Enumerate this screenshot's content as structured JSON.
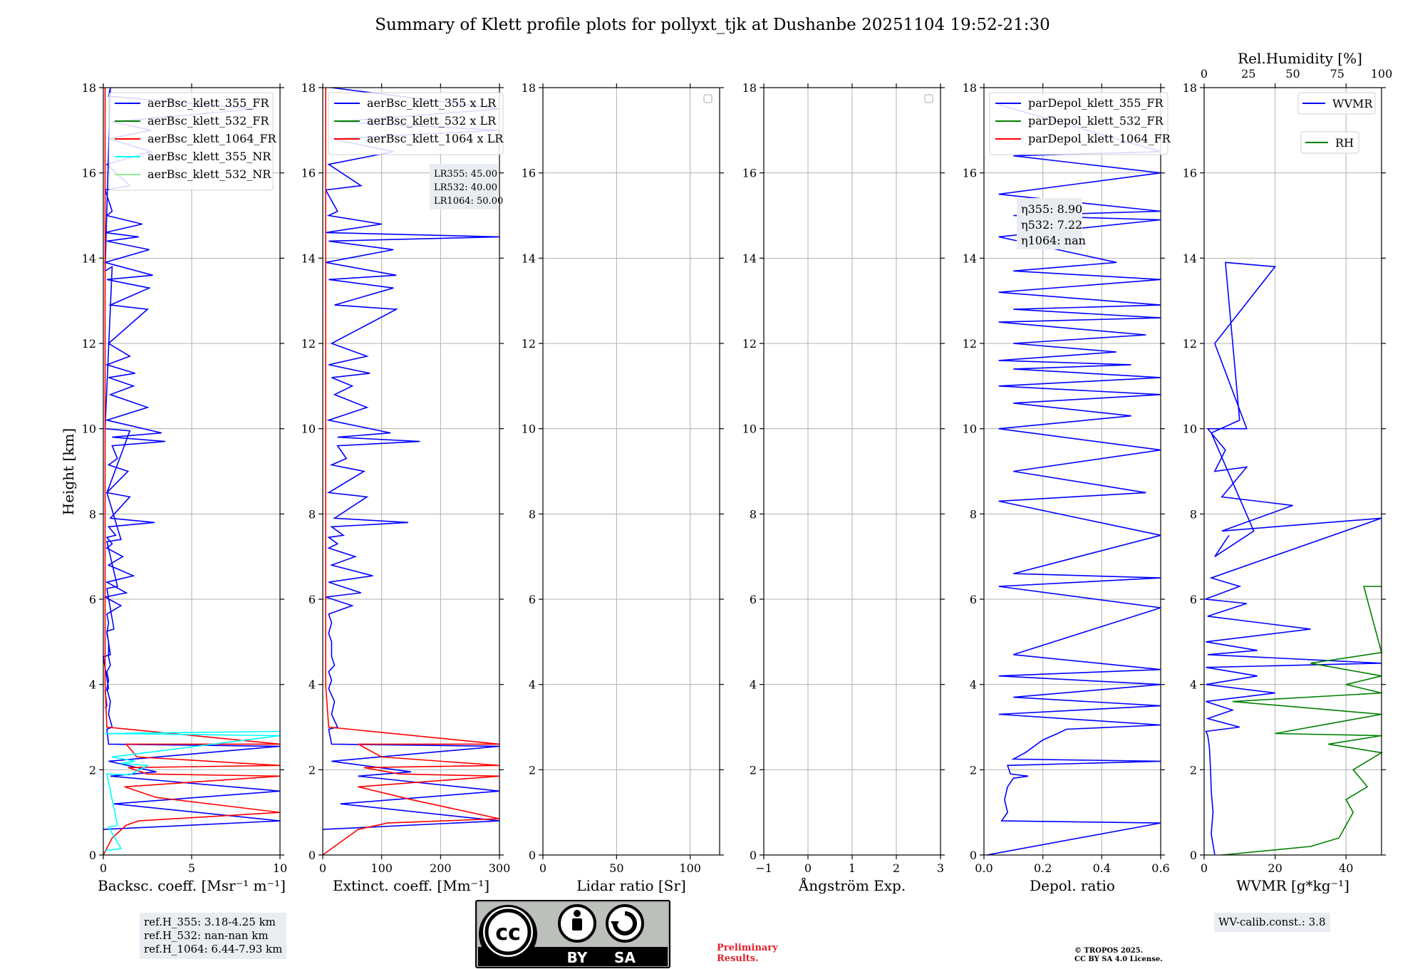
{
  "title": "Summary of Klett profile plots for pollyxt_tjk at Dushanbe 20251104 19:52-21:30",
  "ylabel": "Height [km]",
  "y_ticks": [
    "0",
    "2",
    "4",
    "6",
    "8",
    "10",
    "12",
    "14",
    "16",
    "18"
  ],
  "ref_box": [
    "ref.H_355: 3.18-4.25 km",
    "ref.H_532: nan-nan km",
    "ref.H_1064: 6.44-7.93 km"
  ],
  "wv_box": "WV-calib.const.: 3.8",
  "preliminary": [
    "Preliminary",
    "Results."
  ],
  "copyright": [
    "© TROPOS 2025.",
    "CC BY SA 4.0 License."
  ],
  "license_badge": {
    "by": "BY",
    "sa": "SA"
  },
  "colors": {
    "blue": "#0000ff",
    "green": "#008000",
    "red": "#ff0000",
    "cyan": "#00ffff",
    "lightgreen": "#90ee90",
    "grid": "#b0b0b0",
    "info_bg": "#e9ecf1"
  },
  "chart_data": [
    {
      "id": "backscatter",
      "type": "line",
      "xlabel": "Backsc. coeff. [Msr⁻¹ m⁻¹]",
      "xlim": [
        0,
        10
      ],
      "ylim": [
        0,
        18
      ],
      "x_ticks": [
        "0",
        "5",
        "10"
      ],
      "legend": [
        "aerBsc_klett_355_FR",
        "aerBsc_klett_532_FR",
        "aerBsc_klett_1064_FR",
        "aerBsc_klett_355_NR",
        "aerBsc_klett_532_NR"
      ],
      "legend_colors": [
        "#0000ff",
        "#008000",
        "#ff0000",
        "#00ffff",
        "#90ee90"
      ],
      "series": [
        {
          "name": "aerBsc_klett_355_FR",
          "color": "#0000ff",
          "x": [
            0.0,
            10,
            0.6,
            10,
            0.4,
            3,
            0.3,
            10,
            0.3,
            0.2,
            0.5,
            0.3,
            0.4,
            0.2,
            0.3,
            0.2,
            0.4,
            0.3,
            0.3,
            0.2,
            0.3,
            0.2,
            1,
            0.1,
            1.3,
            0.2,
            1.7,
            0.3,
            1.1,
            0.2,
            0.5,
            0.2,
            0.7,
            0.3,
            2.9,
            0.4,
            1.5,
            0.2,
            1.4,
            0.3,
            0.8,
            0.5,
            3.5,
            0.5,
            3.3,
            0.2,
            2.5,
            0.4,
            1.7,
            0.3,
            1.8,
            0.2,
            1.5,
            0.3,
            2.5,
            0.4,
            2.6,
            0.2,
            2.8,
            0.1,
            2.6,
            0.2,
            2.0,
            0.1,
            2.2,
            0.2,
            0.5,
            0.1,
            1.5,
            0.2,
            2.7,
            0.3,
            2.7,
            0.5,
            8.6,
            0.3,
            0.4,
            0.1,
            0.5,
            0.1,
            1.5,
            0.3,
            0.2,
            1.0,
            0.2,
            0.8,
            0.2,
            0.6,
            0.2,
            0.4,
            0.0,
            0.3,
            0.1,
            0.2,
            0.1
          ],
          "y": [
            0.6,
            0.8,
            1.2,
            1.5,
            1.85,
            1.95,
            2.2,
            2.55,
            2.6,
            2.95,
            3.0,
            3.3,
            3.6,
            3.9,
            4.1,
            4.3,
            4.45,
            4.65,
            5.0,
            5.2,
            5.45,
            5.65,
            5.85,
            6.05,
            6.15,
            6.4,
            6.55,
            6.8,
            7.0,
            7.2,
            7.3,
            7.45,
            7.5,
            7.7,
            7.8,
            7.9,
            8.4,
            8.5,
            9.0,
            9.15,
            9.3,
            9.6,
            9.7,
            9.8,
            9.9,
            10.2,
            10.5,
            10.8,
            11.0,
            11.2,
            11.3,
            11.5,
            11.7,
            12.0,
            12.8,
            12.9,
            13.3,
            13.5,
            13.6,
            13.9,
            14.2,
            14.4,
            14.5,
            14.6,
            14.8,
            15.0,
            15.1,
            15.6,
            15.7,
            16.2,
            16.5,
            16.8,
            17.0,
            17.2,
            17.5,
            17.8,
            18.0,
            13.7,
            13.8,
            10.0,
            9.95,
            8.6,
            8.5,
            7.4,
            7.35,
            6.3,
            6.25,
            5.3,
            5.25,
            4.7,
            4.65,
            3.9,
            3.85,
            3.5,
            3.45
          ]
        },
        {
          "name": "aerBsc_klett_532_FR",
          "color": "#008000",
          "x": [],
          "y": []
        },
        {
          "name": "aerBsc_klett_1064_FR",
          "color": "#ff0000",
          "x": [
            0.0,
            0.5,
            1.3,
            2.0,
            10,
            3,
            1.2,
            10,
            2.5,
            1.4,
            10,
            1.9,
            1.3,
            10,
            0.2,
            0.1,
            0.1,
            0.1,
            0.1,
            0.1
          ],
          "y": [
            0.0,
            0.4,
            0.7,
            0.8,
            1.0,
            1.35,
            1.6,
            1.85,
            1.9,
            2.05,
            2.1,
            2.3,
            2.6,
            2.6,
            3.0,
            4.0,
            8.0,
            12.0,
            16.0,
            18.0
          ]
        },
        {
          "name": "aerBsc_klett_355_NR",
          "color": "#00ffff",
          "x": [
            0.1,
            1.0,
            0.3,
            0.8,
            0.2,
            1.5,
            2.5,
            1.0,
            1.8,
            0.5,
            10,
            0.1,
            10
          ],
          "y": [
            0.1,
            0.15,
            0.65,
            0.7,
            1.9,
            1.88,
            2.1,
            2.15,
            2.2,
            2.3,
            2.8,
            2.85,
            2.9
          ]
        },
        {
          "name": "aerBsc_klett_532_NR",
          "color": "#90ee90",
          "x": [],
          "y": []
        }
      ]
    },
    {
      "id": "extinction",
      "type": "line",
      "xlabel": "Extinct. coeff. [Mm⁻¹]",
      "xlim": [
        0,
        300
      ],
      "ylim": [
        0,
        18
      ],
      "x_ticks": [
        "0",
        "100",
        "200",
        "300"
      ],
      "legend": [
        "aerBsc_klett_355 x LR",
        "aerBsc_klett_532 x LR",
        "aerBsc_klett_1064 x LR"
      ],
      "legend_colors": [
        "#0000ff",
        "#008000",
        "#ff0000"
      ],
      "annotation": [
        "LR355: 45.00",
        "LR532: 40.00",
        "LR1064: 50.00"
      ],
      "series": [
        {
          "name": "aerBsc_klett_355 x LR",
          "color": "#0000ff",
          "x": [
            0,
            300,
            30,
            300,
            60,
            150,
            15,
            300,
            15,
            10,
            25,
            15,
            20,
            10,
            15,
            10,
            20,
            15,
            15,
            10,
            15,
            10,
            50,
            5,
            65,
            10,
            85,
            15,
            55,
            10,
            25,
            10,
            35,
            15,
            145,
            20,
            75,
            10,
            70,
            15,
            40,
            25,
            165,
            25,
            115,
            10,
            75,
            20,
            50,
            15,
            80,
            10,
            75,
            15,
            125,
            20,
            120,
            10,
            125,
            5,
            120,
            10,
            300,
            5,
            100,
            10,
            25,
            5,
            65,
            10,
            120,
            15,
            300,
            25,
            300,
            15
          ],
          "y": [
            0.6,
            0.8,
            1.2,
            1.5,
            1.85,
            1.95,
            2.2,
            2.55,
            2.6,
            2.95,
            3.0,
            3.3,
            3.6,
            3.9,
            4.1,
            4.3,
            4.45,
            4.65,
            5.0,
            5.2,
            5.45,
            5.65,
            5.85,
            6.05,
            6.15,
            6.4,
            6.55,
            6.8,
            7.0,
            7.2,
            7.3,
            7.45,
            7.5,
            7.7,
            7.8,
            7.9,
            8.4,
            8.5,
            9.0,
            9.15,
            9.3,
            9.6,
            9.7,
            9.8,
            9.9,
            10.2,
            10.5,
            10.8,
            11.0,
            11.2,
            11.3,
            11.5,
            11.7,
            12.0,
            12.8,
            12.9,
            13.3,
            13.5,
            13.6,
            13.9,
            14.2,
            14.4,
            14.5,
            14.6,
            14.8,
            15.0,
            15.1,
            15.6,
            15.7,
            16.2,
            16.5,
            16.8,
            17.0,
            17.2,
            17.5,
            18.0
          ]
        },
        {
          "name": "aerBsc_klett_532 x LR",
          "color": "#008000",
          "x": [],
          "y": []
        },
        {
          "name": "aerBsc_klett_1064 x LR",
          "color": "#ff0000",
          "x": [
            0,
            30,
            60,
            110,
            300,
            150,
            60,
            300,
            130,
            70,
            300,
            100,
            60,
            300,
            10,
            5,
            5,
            5,
            5
          ],
          "y": [
            0.0,
            0.3,
            0.6,
            0.75,
            0.85,
            1.3,
            1.6,
            1.85,
            1.9,
            2.05,
            2.1,
            2.3,
            2.6,
            2.6,
            3.0,
            4.0,
            8.0,
            12.0,
            18.0
          ]
        }
      ]
    },
    {
      "id": "lidar_ratio",
      "type": "line",
      "xlabel": "Lidar ratio [Sr]",
      "xlim": [
        0,
        120
      ],
      "ylim": [
        0,
        18
      ],
      "x_ticks": [
        "0",
        "50",
        "100"
      ],
      "series": []
    },
    {
      "id": "angstrom",
      "type": "line",
      "xlabel": "Ångström Exp.",
      "xlim": [
        -1,
        3
      ],
      "ylim": [
        0,
        18
      ],
      "x_ticks": [
        "−1",
        "0",
        "1",
        "2",
        "3"
      ],
      "series": []
    },
    {
      "id": "depol",
      "type": "line",
      "xlabel": "Depol. ratio",
      "xlim": [
        0,
        0.6
      ],
      "ylim": [
        0,
        18
      ],
      "x_ticks": [
        "0.0",
        "0.2",
        "0.4",
        "0.6"
      ],
      "legend": [
        "parDepol_klett_355_FR",
        "parDepol_klett_532_FR",
        "parDepol_klett_1064_FR"
      ],
      "legend_colors": [
        "#0000ff",
        "#008000",
        "#ff0000"
      ],
      "annotation": [
        "η355: 8.90",
        "η532: 7.22",
        "η1064: nan"
      ],
      "series": [
        {
          "name": "parDepol_klett_355_FR",
          "color": "#0000ff",
          "x": [
            0.01,
            0.6,
            0.06,
            0.08,
            0.07,
            0.08,
            0.1,
            0.15,
            0.09,
            0.08,
            0.6,
            0.1,
            0.14,
            0.2,
            0.25,
            0.28,
            0.6,
            0.05,
            0.6,
            0.1,
            0.6,
            0.05,
            0.6,
            0.1,
            0.6,
            0.05,
            0.6,
            0.1,
            0.6,
            0.05,
            0.55,
            0.1,
            0.6,
            0.05,
            0.5,
            0.1,
            0.6,
            0.05,
            0.6,
            0.1,
            0.5,
            0.05,
            0.45,
            0.1,
            0.55,
            0.05,
            0.6,
            0.1,
            0.6,
            0.05,
            0.6,
            0.1,
            0.45,
            0.05,
            0.6,
            0.1,
            0.6,
            0.05,
            0.6,
            0.1,
            0.6,
            0.05
          ],
          "y": [
            0.0,
            0.75,
            0.8,
            1.0,
            1.3,
            1.6,
            1.8,
            1.85,
            1.9,
            2.1,
            2.2,
            2.25,
            2.4,
            2.7,
            2.85,
            2.95,
            3.05,
            3.3,
            3.5,
            3.7,
            4.0,
            4.2,
            4.35,
            4.7,
            5.8,
            6.3,
            6.5,
            6.6,
            7.5,
            8.3,
            8.5,
            9.0,
            9.5,
            10.0,
            10.3,
            10.6,
            10.8,
            11.0,
            11.2,
            11.4,
            11.5,
            11.6,
            11.8,
            12.0,
            12.2,
            12.5,
            12.6,
            12.8,
            12.9,
            13.2,
            13.5,
            13.7,
            13.9,
            14.5,
            14.9,
            15.0,
            15.1,
            15.5,
            16.0,
            16.4,
            16.5,
            17.6
          ]
        }
      ]
    },
    {
      "id": "wvmr",
      "type": "line",
      "xlabel": "WVMR [g*kg⁻¹]",
      "top_xlabel": "Rel.Humidity [%]",
      "xlim": [
        0,
        50
      ],
      "ylim": [
        0,
        18
      ],
      "x_ticks": [
        "0",
        "20",
        "40"
      ],
      "top_ticks": [
        "0",
        "25",
        "50",
        "75",
        "100"
      ],
      "legend": [
        "WVMR",
        "RH"
      ],
      "legend_colors": [
        "#0000ff",
        "#008000"
      ],
      "series": [
        {
          "name": "WVMR",
          "color": "#0000ff",
          "x": [
            3,
            2,
            2.5,
            2,
            1.8,
            1.5,
            1.2,
            1.0,
            0.8,
            0.5,
            10,
            1,
            8,
            0.5,
            20,
            0.5,
            15,
            0.5,
            50,
            1,
            15,
            0.5,
            30,
            1,
            12,
            0.3,
            10,
            2,
            50,
            5,
            25,
            5,
            12,
            3,
            6,
            1,
            12,
            3,
            20,
            6,
            10,
            2,
            14,
            3,
            7
          ],
          "y": [
            0.0,
            0.5,
            1.0,
            1.5,
            2.0,
            2.5,
            2.7,
            2.8,
            2.85,
            2.9,
            3.0,
            3.2,
            3.4,
            3.6,
            3.8,
            4.0,
            4.2,
            4.4,
            4.5,
            4.7,
            4.8,
            5.0,
            5.3,
            5.6,
            5.9,
            6.0,
            6.3,
            6.5,
            7.9,
            7.6,
            8.2,
            8.4,
            9.1,
            9.0,
            9.5,
            10.0,
            10.0,
            12.0,
            13.8,
            13.9,
            10.2,
            9.9,
            7.6,
            7.0,
            7.5
          ]
        },
        {
          "name": "RH",
          "color": "#008000",
          "x": [
            5,
            30,
            38,
            42,
            40,
            46,
            42,
            50,
            35,
            50,
            20,
            50,
            8,
            50,
            40,
            50,
            30,
            50,
            45,
            50
          ],
          "y": [
            0.0,
            0.2,
            0.4,
            1.0,
            1.3,
            1.6,
            2.0,
            2.4,
            2.6,
            2.8,
            2.85,
            3.3,
            3.6,
            3.8,
            4.0,
            4.2,
            4.5,
            4.75,
            6.3,
            6.3
          ]
        }
      ]
    }
  ]
}
